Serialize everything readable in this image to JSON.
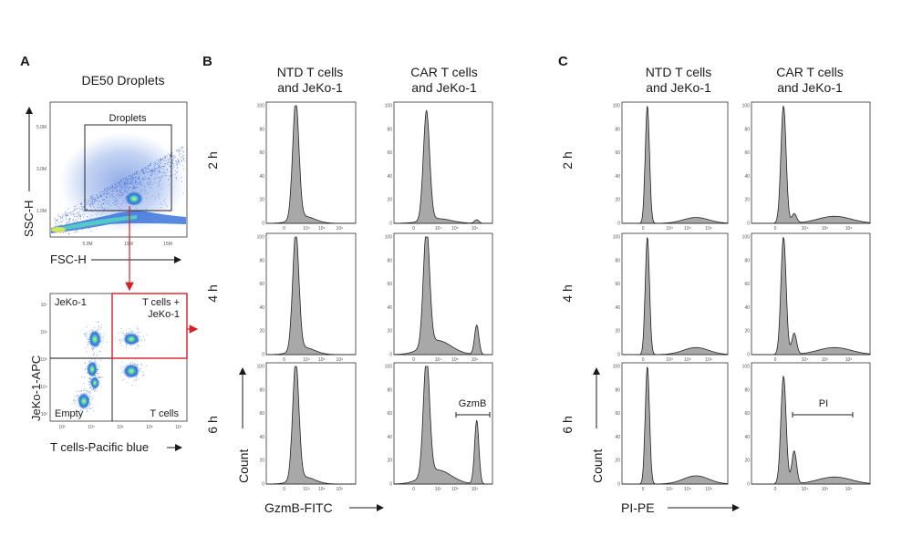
{
  "panels": {
    "A": {
      "letter": "A",
      "title": "DE50 Droplets",
      "scatter1": {
        "xlabel": "FSC-H",
        "ylabel": "SSC-H",
        "gate_label": "Droplets",
        "x_ticks": [
          "5.0M",
          "10M",
          "15M"
        ],
        "y_ticks": [
          "1.0M",
          "3.0M",
          "5.0M"
        ]
      },
      "scatter2": {
        "xlabel": "T cells-Pacific blue",
        "ylabel": "JeKo-1-APC",
        "quadrants": {
          "top_left": "JeKo-1",
          "top_right_line1": "T cells +",
          "top_right_line2": "JeKo-1",
          "bottom_left": "Empty",
          "bottom_right": "T cells"
        },
        "x_ticks": [
          "10³",
          "10⁴",
          "10⁵",
          "10⁶",
          "10⁷"
        ],
        "y_ticks": [
          "10³",
          "10⁴",
          "10⁵",
          "10⁶",
          "10⁷"
        ]
      },
      "colors": {
        "gate": "#000000",
        "highlight_gate": "#d62027",
        "arrow": "#d62027"
      }
    },
    "B": {
      "letter": "B",
      "col_titles": [
        [
          "NTD T cells",
          "and JeKo-1"
        ],
        [
          "CAR T cells",
          "and JeKo-1"
        ]
      ],
      "xlabel": "GzmB-FITC",
      "ylabel": "Count",
      "annotation": "GzmB"
    },
    "C": {
      "letter": "C",
      "col_titles": [
        [
          "NTD T cells",
          "and JeKo-1"
        ],
        [
          "CAR T cells",
          "and JeKo-1"
        ]
      ],
      "xlabel": "PI-PE",
      "ylabel": "Count",
      "annotation": "PI"
    },
    "time_labels": [
      "2 h",
      "4 h",
      "6 h"
    ],
    "hist_y_ticks": [
      "0",
      "20",
      "40",
      "60",
      "80",
      "100"
    ],
    "hist_x_ticks": [
      "0",
      "10⁴",
      "10⁵",
      "10⁶"
    ]
  },
  "chart_data": [
    {
      "type": "scatter",
      "panel": "A-top",
      "title": "DE50 Droplets",
      "xlabel": "FSC-H",
      "ylabel": "SSC-H",
      "x_ticks": [
        "5.0M",
        "10M",
        "15M"
      ],
      "y_ticks": [
        "1.0M",
        "3.0M",
        "5.0M"
      ],
      "gates": [
        {
          "name": "Droplets",
          "color": "#000000"
        }
      ],
      "colormap": "density (blue to yellow)"
    },
    {
      "type": "scatter",
      "panel": "A-bottom",
      "xlabel": "T cells-Pacific blue",
      "ylabel": "JeKo-1-APC",
      "scale": "log",
      "quadrants": [
        "JeKo-1",
        "T cells + JeKo-1",
        "Empty",
        "T cells"
      ],
      "highlighted_gate": "T cells + JeKo-1"
    },
    {
      "type": "area",
      "panel": "B",
      "description_source": "histograms",
      "xlabel": "GzmB-FITC",
      "ylabel": "Count",
      "ylim": [
        0,
        100
      ],
      "rows": [
        "2 h",
        "4 h",
        "6 h"
      ],
      "columns": [
        "NTD T cells and JeKo-1",
        "CAR T cells and JeKo-1"
      ],
      "peaks": [
        {
          "row": "2 h",
          "col": "NTD",
          "main_peak": 100,
          "second_peak": 0
        },
        {
          "row": "2 h",
          "col": "CAR",
          "main_peak": 93,
          "second_peak": 3
        },
        {
          "row": "4 h",
          "col": "NTD",
          "main_peak": 100,
          "second_peak": 0
        },
        {
          "row": "4 h",
          "col": "CAR",
          "main_peak": 100,
          "second_peak": 25
        },
        {
          "row": "6 h",
          "col": "NTD",
          "main_peak": 100,
          "second_peak": 0
        },
        {
          "row": "6 h",
          "col": "CAR",
          "main_peak": 100,
          "second_peak": 54
        }
      ]
    },
    {
      "type": "area",
      "panel": "C",
      "xlabel": "PI-PE",
      "ylabel": "Count",
      "ylim": [
        0,
        100
      ],
      "rows": [
        "2 h",
        "4 h",
        "6 h"
      ],
      "columns": [
        "NTD T cells and JeKo-1",
        "CAR T cells and JeKo-1"
      ],
      "peaks": [
        {
          "row": "2 h",
          "col": "NTD",
          "main_peak": 100,
          "second_peak": 5
        },
        {
          "row": "2 h",
          "col": "CAR",
          "main_peak": 100,
          "second_peak": 8
        },
        {
          "row": "4 h",
          "col": "NTD",
          "main_peak": 100,
          "second_peak": 6
        },
        {
          "row": "4 h",
          "col": "CAR",
          "main_peak": 100,
          "second_peak": 18
        },
        {
          "row": "6 h",
          "col": "NTD",
          "main_peak": 100,
          "second_peak": 7
        },
        {
          "row": "6 h",
          "col": "CAR",
          "main_peak": 92,
          "second_peak": 28
        }
      ]
    }
  ]
}
